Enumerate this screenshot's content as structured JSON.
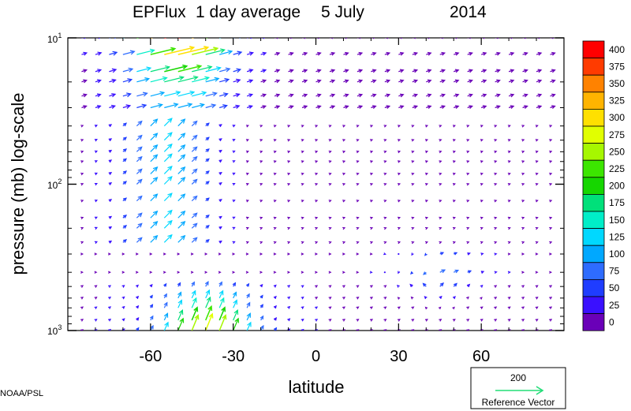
{
  "chart_data": {
    "type": "vector-field",
    "title_parts": [
      "EPFlux",
      "1 day average",
      "5 July",
      "2014"
    ],
    "xlabel": "latitude",
    "ylabel": "pressure (mb)  log-scale",
    "x_ticks": [
      "-60",
      "-30",
      "0",
      "30",
      "60"
    ],
    "x_tick_values": [
      -60,
      -30,
      0,
      30,
      60
    ],
    "xlim": [
      -90,
      90
    ],
    "y_scale": "log",
    "y_ticks": [
      {
        "base": "10",
        "exp": "1",
        "value": 10
      },
      {
        "base": "10",
        "exp": "2",
        "value": 100
      },
      {
        "base": "10",
        "exp": "3",
        "value": 1000
      }
    ],
    "ylim": [
      10,
      1000
    ],
    "y_inverted": true,
    "colorbar": {
      "labels": [
        "400",
        "375",
        "350",
        "325",
        "300",
        "275",
        "250",
        "225",
        "200",
        "175",
        "150",
        "125",
        "100",
        "75",
        "50",
        "25",
        "0"
      ],
      "colors": [
        "#ff0000",
        "#ff3b00",
        "#ff8200",
        "#ffb400",
        "#ffe000",
        "#e1ff00",
        "#a6f700",
        "#3ce600",
        "#16d600",
        "#00e07a",
        "#00eec8",
        "#00d8ff",
        "#00a8ff",
        "#2e6cff",
        "#1f3dff",
        "#3a10ff",
        "#6a00b8"
      ],
      "placement": "right"
    },
    "reference_vector": {
      "value": "200",
      "label": "Reference Vector",
      "color": "#22dd77"
    },
    "credit": "NOAA/PSL",
    "vectors_note": "pressure-level rows; features: strong upward/equatorward flux at 10-30 mb 70S-25S, moderate flux 700-1000 mb 60S-25S, weak divergent pattern near 300-500 mb 30N-60N"
  }
}
